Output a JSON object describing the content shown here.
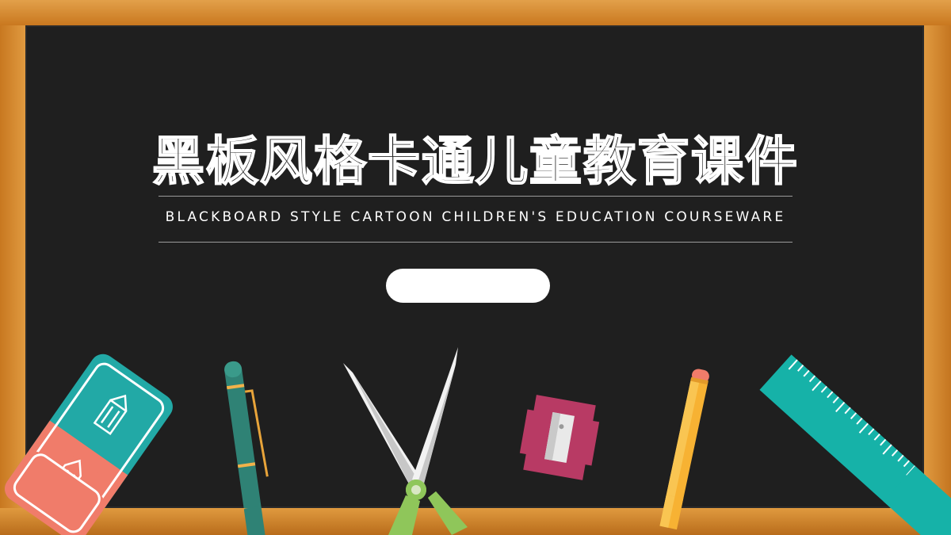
{
  "slide": {
    "title": "黑板风格卡通儿童教育课件",
    "subtitle": "BLACKBOARD STYLE CARTOON CHILDREN'S EDUCATION COURSEWARE",
    "button_label": ""
  },
  "colors": {
    "frame": "#d68a2e",
    "board": "#1f1f1f",
    "title_stroke": "#ffffff",
    "eraser_teal": "#22a9a6",
    "eraser_salmon": "#f07c6a",
    "pen_body": "#2f8275",
    "ruler": "#16b2a8",
    "pencil": "#f7b233",
    "sharpener": "#b83a64",
    "scissor_handle": "#8fc65a"
  },
  "icons": [
    "eraser-icon",
    "pen-icon",
    "scissors-icon",
    "sharpener-icon",
    "pencil-icon",
    "ruler-icon"
  ]
}
